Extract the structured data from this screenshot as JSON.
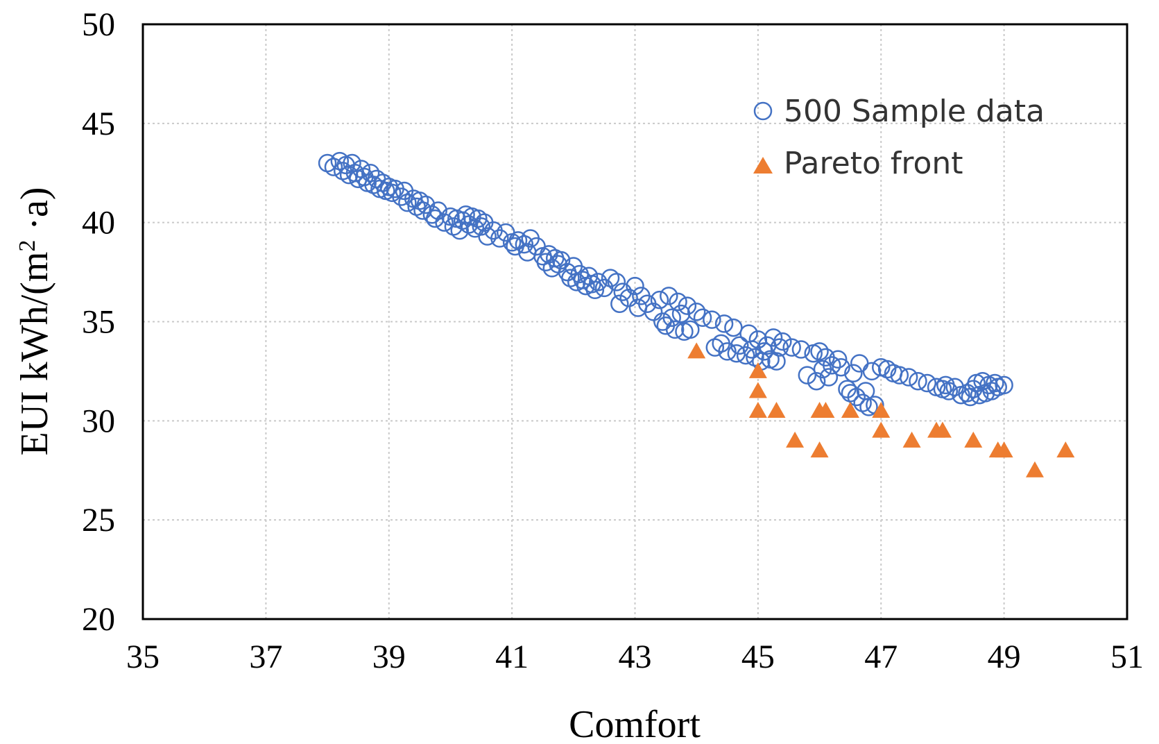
{
  "chart_data": {
    "type": "scatter",
    "xlabel": "Comfort",
    "ylabel_prefix": "EUI kWh/(m",
    "ylabel_sup": "2",
    "ylabel_suffix": " ·a)",
    "xlim": [
      35,
      51
    ],
    "ylim": [
      20,
      50
    ],
    "xticks": [
      35,
      37,
      39,
      41,
      43,
      45,
      47,
      49,
      51
    ],
    "yticks": [
      20,
      25,
      30,
      35,
      40,
      45,
      50
    ],
    "grid": true,
    "legend_position": "top-right",
    "colors": {
      "sample": "#4472C4",
      "pareto": "#ED7D31"
    },
    "series": [
      {
        "name": "500 Sample data",
        "marker": "open-circle",
        "points": [
          [
            38.0,
            43.0
          ],
          [
            38.1,
            42.8
          ],
          [
            38.2,
            43.1
          ],
          [
            38.25,
            42.6
          ],
          [
            38.3,
            42.9
          ],
          [
            38.35,
            42.4
          ],
          [
            38.4,
            43.0
          ],
          [
            38.45,
            42.5
          ],
          [
            38.5,
            42.2
          ],
          [
            38.55,
            42.7
          ],
          [
            38.6,
            42.3
          ],
          [
            38.65,
            42.0
          ],
          [
            38.7,
            42.5
          ],
          [
            38.75,
            41.9
          ],
          [
            38.8,
            42.2
          ],
          [
            38.85,
            41.7
          ],
          [
            38.9,
            42.0
          ],
          [
            38.95,
            41.6
          ],
          [
            39.0,
            41.8
          ],
          [
            39.05,
            41.5
          ],
          [
            39.1,
            41.7
          ],
          [
            39.2,
            41.3
          ],
          [
            39.25,
            41.6
          ],
          [
            39.3,
            41.0
          ],
          [
            39.4,
            41.2
          ],
          [
            39.45,
            40.8
          ],
          [
            39.5,
            41.1
          ],
          [
            39.55,
            40.6
          ],
          [
            39.6,
            40.9
          ],
          [
            39.7,
            40.4
          ],
          [
            39.75,
            40.2
          ],
          [
            39.8,
            40.6
          ],
          [
            39.9,
            40.0
          ],
          [
            40.0,
            40.3
          ],
          [
            40.05,
            39.8
          ],
          [
            40.1,
            40.2
          ],
          [
            40.15,
            39.6
          ],
          [
            40.2,
            40.1
          ],
          [
            40.25,
            40.4
          ],
          [
            40.3,
            39.9
          ],
          [
            40.35,
            40.3
          ],
          [
            40.4,
            39.7
          ],
          [
            40.45,
            40.2
          ],
          [
            40.5,
            39.8
          ],
          [
            40.55,
            40.0
          ],
          [
            40.6,
            39.3
          ],
          [
            40.7,
            39.6
          ],
          [
            40.8,
            39.2
          ],
          [
            40.9,
            39.5
          ],
          [
            41.0,
            39.0
          ],
          [
            41.05,
            38.8
          ],
          [
            41.1,
            39.1
          ],
          [
            41.2,
            38.9
          ],
          [
            41.25,
            38.5
          ],
          [
            41.3,
            39.2
          ],
          [
            41.4,
            38.8
          ],
          [
            41.5,
            38.3
          ],
          [
            41.55,
            38.0
          ],
          [
            41.6,
            38.4
          ],
          [
            41.65,
            37.7
          ],
          [
            41.7,
            38.2
          ],
          [
            41.75,
            37.9
          ],
          [
            41.8,
            38.1
          ],
          [
            41.9,
            37.5
          ],
          [
            41.95,
            37.2
          ],
          [
            42.0,
            37.8
          ],
          [
            42.05,
            37.0
          ],
          [
            42.1,
            37.4
          ],
          [
            42.15,
            37.1
          ],
          [
            42.2,
            36.8
          ],
          [
            42.25,
            37.3
          ],
          [
            42.3,
            36.9
          ],
          [
            42.35,
            36.6
          ],
          [
            42.4,
            37.0
          ],
          [
            42.5,
            36.7
          ],
          [
            42.6,
            37.2
          ],
          [
            42.7,
            37.0
          ],
          [
            42.75,
            35.9
          ],
          [
            42.8,
            36.5
          ],
          [
            42.9,
            36.2
          ],
          [
            43.0,
            36.8
          ],
          [
            43.05,
            35.7
          ],
          [
            43.1,
            36.3
          ],
          [
            43.2,
            35.9
          ],
          [
            43.3,
            35.5
          ],
          [
            43.4,
            36.1
          ],
          [
            43.45,
            35.0
          ],
          [
            43.5,
            34.8
          ],
          [
            43.55,
            36.3
          ],
          [
            43.6,
            35.2
          ],
          [
            43.65,
            34.6
          ],
          [
            43.7,
            36.0
          ],
          [
            43.75,
            35.4
          ],
          [
            43.8,
            34.5
          ],
          [
            43.85,
            35.8
          ],
          [
            43.9,
            34.6
          ],
          [
            44.0,
            35.5
          ],
          [
            44.1,
            35.2
          ],
          [
            44.25,
            35.1
          ],
          [
            44.3,
            33.7
          ],
          [
            44.4,
            33.9
          ],
          [
            44.45,
            34.9
          ],
          [
            44.5,
            33.5
          ],
          [
            44.6,
            34.7
          ],
          [
            44.65,
            33.4
          ],
          [
            44.7,
            33.8
          ],
          [
            44.8,
            33.3
          ],
          [
            44.85,
            34.4
          ],
          [
            44.9,
            33.6
          ],
          [
            44.95,
            33.2
          ],
          [
            45.0,
            34.1
          ],
          [
            45.05,
            33.0
          ],
          [
            45.1,
            33.5
          ],
          [
            45.15,
            33.8
          ],
          [
            45.2,
            33.1
          ],
          [
            45.25,
            34.2
          ],
          [
            45.3,
            33.0
          ],
          [
            45.35,
            33.7
          ],
          [
            45.4,
            34.0
          ],
          [
            45.55,
            33.7
          ],
          [
            45.7,
            33.6
          ],
          [
            45.8,
            32.3
          ],
          [
            45.9,
            33.4
          ],
          [
            45.95,
            32.0
          ],
          [
            46.0,
            33.5
          ],
          [
            46.05,
            32.6
          ],
          [
            46.1,
            33.2
          ],
          [
            46.15,
            32.2
          ],
          [
            46.2,
            32.8
          ],
          [
            46.3,
            33.1
          ],
          [
            46.35,
            32.7
          ],
          [
            46.45,
            31.6
          ],
          [
            46.5,
            31.4
          ],
          [
            46.55,
            32.4
          ],
          [
            46.6,
            31.2
          ],
          [
            46.65,
            32.9
          ],
          [
            46.7,
            30.9
          ],
          [
            46.75,
            31.5
          ],
          [
            46.8,
            30.7
          ],
          [
            46.85,
            32.5
          ],
          [
            46.9,
            30.8
          ],
          [
            47.0,
            32.7
          ],
          [
            47.1,
            32.6
          ],
          [
            47.2,
            32.4
          ],
          [
            47.3,
            32.3
          ],
          [
            47.45,
            32.2
          ],
          [
            47.6,
            32.0
          ],
          [
            47.75,
            31.9
          ],
          [
            47.9,
            31.7
          ],
          [
            48.0,
            31.6
          ],
          [
            48.05,
            31.8
          ],
          [
            48.1,
            31.5
          ],
          [
            48.2,
            31.7
          ],
          [
            48.3,
            31.3
          ],
          [
            48.4,
            31.4
          ],
          [
            48.45,
            31.2
          ],
          [
            48.5,
            31.6
          ],
          [
            48.55,
            31.9
          ],
          [
            48.6,
            31.3
          ],
          [
            48.65,
            32.0
          ],
          [
            48.7,
            31.4
          ],
          [
            48.75,
            31.8
          ],
          [
            48.8,
            31.5
          ],
          [
            48.85,
            31.9
          ],
          [
            48.9,
            31.7
          ],
          [
            49.0,
            31.8
          ]
        ]
      },
      {
        "name": "Pareto front",
        "marker": "filled-triangle",
        "points": [
          [
            44.0,
            33.5
          ],
          [
            45.0,
            32.5
          ],
          [
            45.0,
            31.5
          ],
          [
            45.0,
            30.5
          ],
          [
            45.3,
            30.5
          ],
          [
            45.6,
            29.0
          ],
          [
            46.0,
            28.5
          ],
          [
            46.0,
            30.5
          ],
          [
            46.1,
            30.5
          ],
          [
            46.5,
            30.5
          ],
          [
            47.0,
            30.5
          ],
          [
            47.0,
            29.5
          ],
          [
            47.5,
            29.0
          ],
          [
            47.9,
            29.5
          ],
          [
            48.0,
            29.5
          ],
          [
            48.5,
            29.0
          ],
          [
            48.9,
            28.5
          ],
          [
            49.0,
            28.5
          ],
          [
            49.5,
            27.5
          ],
          [
            50.0,
            28.5
          ]
        ]
      }
    ]
  }
}
